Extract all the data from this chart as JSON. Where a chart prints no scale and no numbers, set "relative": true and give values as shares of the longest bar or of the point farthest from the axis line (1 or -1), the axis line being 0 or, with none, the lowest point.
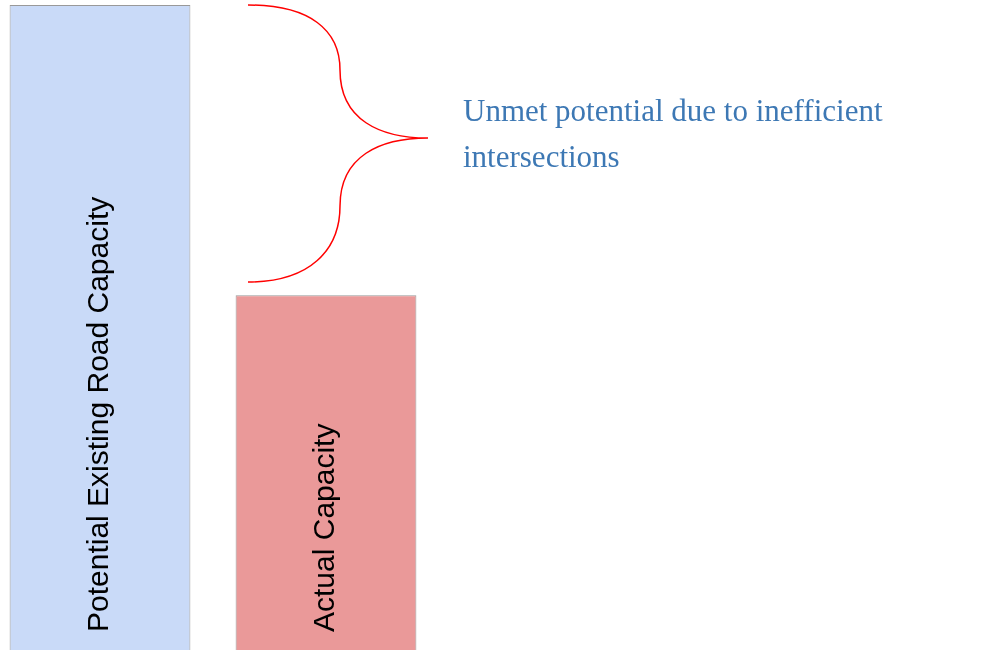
{
  "chart_data": {
    "type": "bar",
    "relative": true,
    "categories": [
      "Potential Existing Road Capacity",
      "Actual Capacity"
    ],
    "values": [
      1,
      0.55
    ],
    "colors": [
      "#c9daf8",
      "#ea9999"
    ],
    "annotations": [
      "Unmet potential due to inefficient intersections"
    ]
  }
}
